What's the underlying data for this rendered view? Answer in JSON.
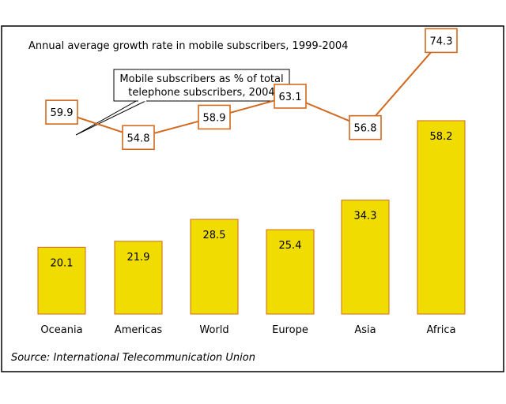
{
  "chart_data": {
    "type": "bar",
    "title": "Annual average growth rate in mobile subscribers, 1999-2004",
    "categories": [
      "Oceania",
      "Americas",
      "World",
      "Europe",
      "Asia",
      "Africa"
    ],
    "series": [
      {
        "type": "bar",
        "values": [
          20.1,
          21.9,
          28.5,
          25.4,
          34.3,
          58.2
        ]
      },
      {
        "type": "line",
        "name": "Mobile subscribers as % of total telephone subscribers, 2004",
        "values": [
          59.9,
          54.8,
          58.9,
          63.1,
          56.8,
          74.3
        ]
      }
    ],
    "callout_lines": [
      "Mobile subscribers as % of total",
      "telephone subscribers, 2004"
    ],
    "source": "Source: International Telecommunication Union",
    "colors": {
      "bar_fill": "#f0dc00",
      "bar_stroke": "#d2691e",
      "line": "#d2691e",
      "border": "#000000"
    }
  }
}
